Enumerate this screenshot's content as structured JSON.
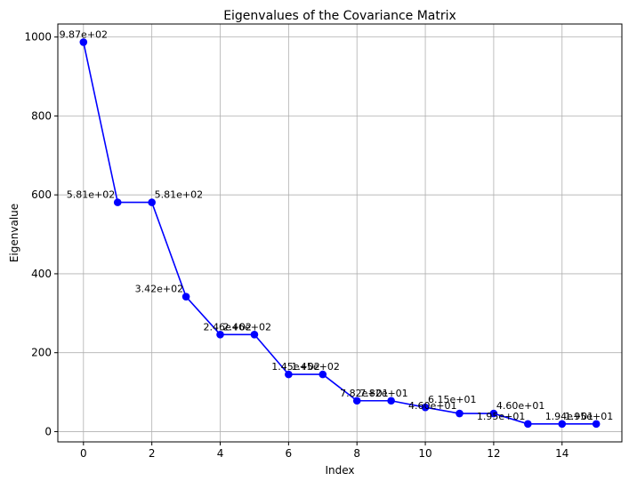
{
  "chart_data": {
    "type": "line",
    "title": "Eigenvalues of the Covariance Matrix",
    "xlabel": "Index",
    "ylabel": "Eigenvalue",
    "xlim": [
      -0.75,
      15.75
    ],
    "ylim": [
      -26,
      1033
    ],
    "grid": true,
    "x_ticks": [
      0,
      2,
      4,
      6,
      8,
      10,
      12,
      14
    ],
    "y_ticks": [
      0,
      200,
      400,
      600,
      800,
      1000
    ],
    "x_tick_labels": [
      "0",
      "2",
      "4",
      "6",
      "8",
      "10",
      "12",
      "14"
    ],
    "y_tick_labels": [
      "0",
      "200",
      "400",
      "600",
      "800",
      "1000"
    ],
    "series_color": "#0000ff",
    "marker": "circle",
    "series": [
      {
        "x": [
          0,
          1,
          2,
          3,
          4,
          5,
          6,
          7,
          8,
          9,
          10,
          11,
          12,
          13,
          14,
          15
        ],
        "values": [
          987,
          581,
          581,
          342,
          246,
          246,
          145,
          145,
          78.2,
          78.2,
          61.5,
          46.0,
          46.0,
          19.5,
          19.5,
          19.4
        ]
      }
    ],
    "data_labels": [
      "9.87e+02",
      "5.81e+02",
      "5.81e+02",
      "3.42e+02",
      "2.46e+02",
      "2.46e+02",
      "1.45e+02",
      "1.45e+02",
      "7.82e+01",
      "7.82e+01",
      "6.15e+01",
      "4.60e+01",
      "4.60e+01",
      "1.95e+01",
      "1.95e+01",
      "1.94e+01"
    ]
  }
}
